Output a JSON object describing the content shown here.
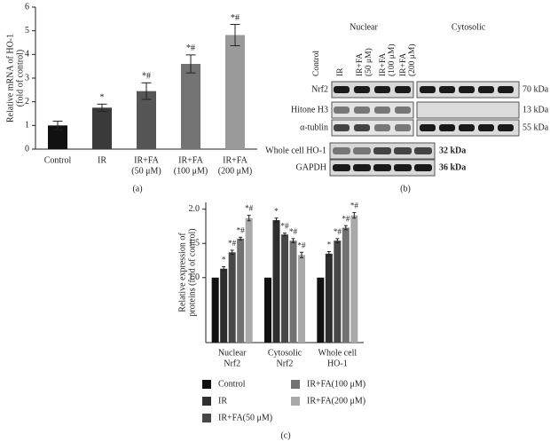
{
  "chart_data": [
    {
      "type": "bar",
      "panel": "(a)",
      "y_label": [
        "Relative mRNA of HO-1",
        "(fold of control)"
      ],
      "categories": [
        [
          "Control"
        ],
        [
          "IR"
        ],
        [
          "IR+FA",
          "(50 μM)"
        ],
        [
          "IR+FA",
          "(100 μM)"
        ],
        [
          "IR+FA",
          "(200 μM)"
        ]
      ],
      "values": [
        1.0,
        1.75,
        2.45,
        3.6,
        4.82
      ],
      "errors": [
        0.18,
        0.15,
        0.35,
        0.38,
        0.45
      ],
      "annotations": [
        null,
        "*",
        "*#",
        "*#",
        "*#"
      ],
      "colors": [
        "#111111",
        "#3a3a3a",
        "#565656",
        "#737373",
        "#9a9a9a"
      ],
      "ylim": [
        0,
        6
      ],
      "yticks": [
        0,
        1,
        2,
        3,
        4,
        5,
        6
      ]
    },
    {
      "type": "grouped-bar",
      "panel": "(c)",
      "y_label": [
        "Relative expression of",
        "proteins (fold of control)"
      ],
      "categories": [
        [
          "Nuclear",
          "Nrf2"
        ],
        [
          "Cytosolic",
          "Nrf2"
        ],
        [
          "Whole cell",
          "HO-1"
        ]
      ],
      "series": [
        {
          "name": "Control",
          "color": "#111111",
          "values": [
            1.0,
            1.0,
            1.0
          ],
          "errors": [
            0.0,
            0.0,
            0.0
          ],
          "annotations": [
            null,
            null,
            null
          ]
        },
        {
          "name": "IR",
          "color": "#2e2e2e",
          "values": [
            1.13,
            1.84,
            1.35
          ],
          "errors": [
            0.03,
            0.03,
            0.03
          ],
          "annotations": [
            "*",
            "*",
            "*"
          ]
        },
        {
          "name": "IR+FA(50 μM)",
          "color": "#474747",
          "values": [
            1.37,
            1.63,
            1.54
          ],
          "errors": [
            0.03,
            0.02,
            0.03
          ],
          "annotations": [
            "*#",
            "*#",
            "*#"
          ]
        },
        {
          "name": "IR+FA(100 μM)",
          "color": "#727272",
          "values": [
            1.57,
            1.54,
            1.73
          ],
          "errors": [
            0.02,
            0.03,
            0.03
          ],
          "annotations": [
            "*#",
            "*#",
            "*#"
          ]
        },
        {
          "name": "IR+FA(200 μM)",
          "color": "#a9a9a9",
          "values": [
            1.87,
            1.33,
            1.91
          ],
          "errors": [
            0.04,
            0.04,
            0.04
          ],
          "annotations": [
            "*#",
            "*#",
            "*#"
          ]
        }
      ],
      "ylim": [
        0.05,
        2.1
      ],
      "yticks": [
        {
          "value": 1,
          "label": "1.0"
        },
        {
          "value": 1.5,
          "label": "1.5"
        },
        {
          "value": 2,
          "label": "2.0"
        }
      ]
    }
  ],
  "blot": {
    "panel": "(b)",
    "groups": [
      "Nuclear",
      "Cytosolic"
    ],
    "lanes": [
      [
        "Control"
      ],
      [
        "IR"
      ],
      [
        "IR+FA",
        "(50 μM)"
      ],
      [
        "IR+FA",
        "(100 μM)"
      ],
      [
        "IR+FA",
        "(200 μM)"
      ]
    ],
    "rows": [
      {
        "label": "Nrf2",
        "size": "70 kDa"
      },
      {
        "label": "Hitone H3",
        "size": "13 kDa"
      },
      {
        "label": "α-tublin",
        "size": "55 kDa"
      },
      {
        "label": "Whole cell HO-1",
        "size": "32 kDa"
      },
      {
        "label": "GAPDH",
        "size": "36 kDa"
      }
    ]
  }
}
